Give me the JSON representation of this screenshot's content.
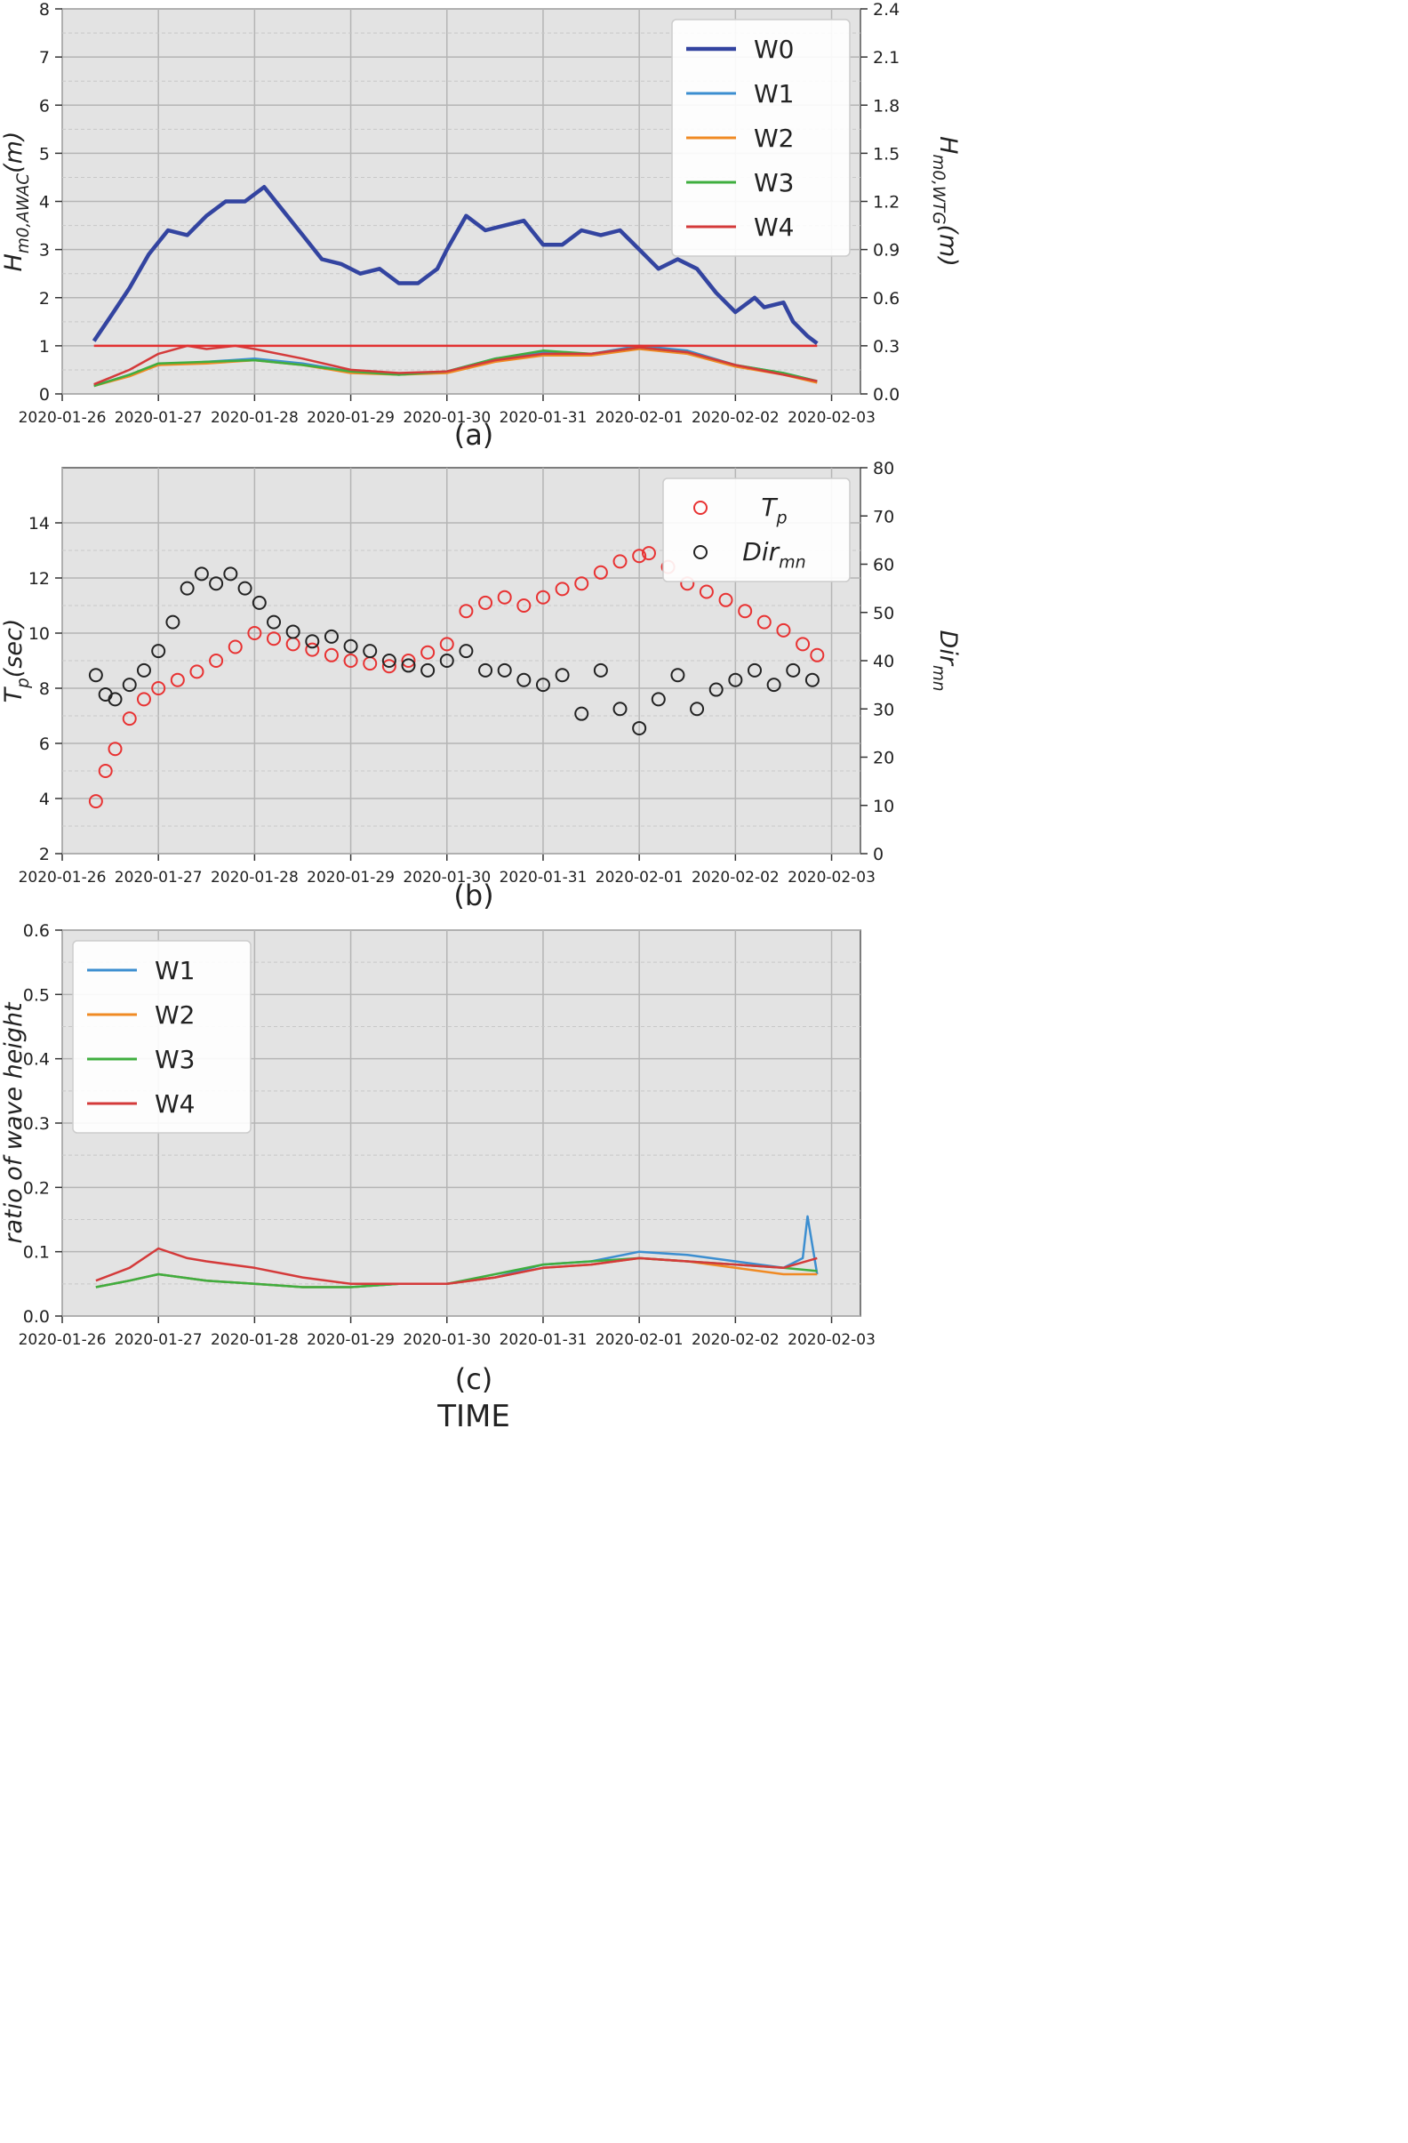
{
  "chart_data": [
    {
      "type": "line",
      "panel_label": "(a)",
      "ylabel": "H_{m0,AWAC}(m)",
      "ylabel_right": "H_{m0,WTG}(m)",
      "ylim": [
        0,
        8
      ],
      "ylim_right": [
        0,
        2.4
      ],
      "yticks": [
        "0",
        "1",
        "2",
        "3",
        "4",
        "5",
        "6",
        "7",
        "8"
      ],
      "yticks_right": [
        "0.0",
        "0.3",
        "0.6",
        "0.9",
        "1.2",
        "1.5",
        "1.8",
        "2.1",
        "2.4"
      ],
      "xticks": [
        "2020-01-26",
        "2020-01-27",
        "2020-01-28",
        "2020-01-29",
        "2020-01-30",
        "2020-01-31",
        "2020-02-01",
        "2020-02-02",
        "2020-02-03"
      ],
      "grid": true,
      "legend_position": "top-right",
      "series": [
        {
          "name": "W0",
          "axis": "left",
          "color": "#3344a0",
          "x": [
            0.33,
            0.5,
            0.7,
            0.9,
            1.1,
            1.3,
            1.5,
            1.7,
            1.9,
            2.1,
            2.3,
            2.5,
            2.7,
            2.9,
            3.1,
            3.3,
            3.5,
            3.7,
            3.9,
            4.0,
            4.2,
            4.4,
            4.6,
            4.8,
            5.0,
            5.2,
            5.4,
            5.6,
            5.8,
            6.0,
            6.2,
            6.4,
            6.6,
            6.8,
            7.0,
            7.2,
            7.3,
            7.5,
            7.6,
            7.75,
            7.85
          ],
          "y": [
            1.1,
            1.6,
            2.2,
            2.9,
            3.4,
            3.3,
            3.7,
            4.0,
            4.0,
            4.3,
            3.8,
            3.3,
            2.8,
            2.7,
            2.5,
            2.6,
            2.3,
            2.3,
            2.6,
            3.0,
            3.7,
            3.4,
            3.5,
            3.6,
            3.1,
            3.1,
            3.4,
            3.3,
            3.4,
            3.0,
            2.6,
            2.8,
            2.6,
            2.1,
            1.7,
            2.0,
            1.8,
            1.9,
            1.5,
            1.2,
            1.05
          ]
        },
        {
          "name": "W1",
          "axis": "right",
          "color": "#3c8ed0",
          "x": [
            0.33,
            0.7,
            1.0,
            1.5,
            2.0,
            2.5,
            3.0,
            3.5,
            4.0,
            4.5,
            5.0,
            5.5,
            6.0,
            6.5,
            7.0,
            7.5,
            7.85
          ],
          "y": [
            0.05,
            0.12,
            0.18,
            0.2,
            0.22,
            0.19,
            0.14,
            0.12,
            0.14,
            0.22,
            0.26,
            0.25,
            0.3,
            0.27,
            0.18,
            0.13,
            0.08
          ]
        },
        {
          "name": "W2",
          "axis": "right",
          "color": "#f08a24",
          "x": [
            0.33,
            0.7,
            1.0,
            1.5,
            2.0,
            2.5,
            3.0,
            3.5,
            4.0,
            4.5,
            5.0,
            5.5,
            6.0,
            6.5,
            7.0,
            7.5,
            7.85
          ],
          "y": [
            0.05,
            0.11,
            0.18,
            0.19,
            0.21,
            0.18,
            0.13,
            0.12,
            0.13,
            0.2,
            0.24,
            0.24,
            0.28,
            0.25,
            0.17,
            0.12,
            0.07
          ]
        },
        {
          "name": "W3",
          "axis": "right",
          "color": "#3fae3f",
          "x": [
            0.33,
            0.7,
            1.0,
            1.5,
            2.0,
            2.5,
            3.0,
            3.5,
            4.0,
            4.5,
            5.0,
            5.5,
            6.0,
            6.5,
            7.0,
            7.5,
            7.85
          ],
          "y": [
            0.05,
            0.12,
            0.19,
            0.2,
            0.21,
            0.18,
            0.14,
            0.12,
            0.14,
            0.22,
            0.27,
            0.25,
            0.29,
            0.26,
            0.18,
            0.13,
            0.08
          ]
        },
        {
          "name": "W4",
          "axis": "right",
          "color": "#d43a3a",
          "x": [
            0.33,
            0.7,
            1.0,
            1.3,
            1.5,
            1.8,
            2.0,
            2.5,
            3.0,
            3.5,
            4.0,
            4.5,
            5.0,
            5.5,
            6.0,
            6.5,
            7.0,
            7.5,
            7.85
          ],
          "y": [
            0.06,
            0.15,
            0.25,
            0.3,
            0.28,
            0.3,
            0.28,
            0.22,
            0.15,
            0.13,
            0.14,
            0.21,
            0.25,
            0.25,
            0.29,
            0.26,
            0.18,
            0.12,
            0.08
          ]
        },
        {
          "name": "",
          "axis": "left",
          "color": "#e23030",
          "x": [
            0.33,
            7.85
          ],
          "y": [
            1.0,
            1.0
          ]
        }
      ]
    },
    {
      "type": "scatter",
      "panel_label": "(b)",
      "ylabel": "T_p(sec)",
      "ylabel_right": "Dir_mn",
      "ylim": [
        2,
        16
      ],
      "ylim_right": [
        0,
        80
      ],
      "yticks": [
        "2",
        "4",
        "6",
        "8",
        "10",
        "12",
        "14"
      ],
      "yticks_right": [
        "0",
        "10",
        "20",
        "30",
        "40",
        "50",
        "60",
        "70",
        "80"
      ],
      "xticks": [
        "2020-01-26",
        "2020-01-27",
        "2020-01-28",
        "2020-01-29",
        "2020-01-30",
        "2020-01-31",
        "2020-02-01",
        "2020-02-02",
        "2020-02-03"
      ],
      "grid": true,
      "legend_position": "top-right",
      "series": [
        {
          "name": "T_p",
          "axis": "left",
          "color": "#e83232",
          "x": [
            0.35,
            0.45,
            0.55,
            0.7,
            0.85,
            1.0,
            1.2,
            1.4,
            1.6,
            1.8,
            2.0,
            2.2,
            2.4,
            2.6,
            2.8,
            3.0,
            3.2,
            3.4,
            3.6,
            3.8,
            4.0,
            4.2,
            4.4,
            4.6,
            4.8,
            5.0,
            5.2,
            5.4,
            5.6,
            5.8,
            6.0,
            6.1,
            6.3,
            6.5,
            6.7,
            6.9,
            7.1,
            7.3,
            7.5,
            7.7,
            7.85
          ],
          "y": [
            3.9,
            5.0,
            5.8,
            6.9,
            7.6,
            8.0,
            8.3,
            8.6,
            9.0,
            9.5,
            10.0,
            9.8,
            9.6,
            9.4,
            9.2,
            9.0,
            8.9,
            8.8,
            9.0,
            9.3,
            9.6,
            10.8,
            11.1,
            11.3,
            11.0,
            11.3,
            11.6,
            11.8,
            12.2,
            12.6,
            12.8,
            12.9,
            12.4,
            11.8,
            11.5,
            11.2,
            10.8,
            10.4,
            10.1,
            9.6,
            9.2
          ]
        },
        {
          "name": "Dir_mn",
          "axis": "right",
          "color": "#222222",
          "x": [
            0.35,
            0.45,
            0.55,
            0.7,
            0.85,
            1.0,
            1.15,
            1.3,
            1.45,
            1.6,
            1.75,
            1.9,
            2.05,
            2.2,
            2.4,
            2.6,
            2.8,
            3.0,
            3.2,
            3.4,
            3.6,
            3.8,
            4.0,
            4.2,
            4.4,
            4.6,
            4.8,
            5.0,
            5.2,
            5.4,
            5.6,
            5.8,
            6.0,
            6.2,
            6.4,
            6.6,
            6.8,
            7.0,
            7.2,
            7.4,
            7.6,
            7.8
          ],
          "y": [
            37,
            33,
            32,
            35,
            38,
            42,
            48,
            55,
            58,
            56,
            58,
            55,
            52,
            48,
            46,
            44,
            45,
            43,
            42,
            40,
            39,
            38,
            40,
            42,
            38,
            38,
            36,
            35,
            37,
            29,
            38,
            30,
            26,
            32,
            37,
            30,
            34,
            36,
            38,
            35,
            38,
            36
          ]
        }
      ]
    },
    {
      "type": "line",
      "panel_label": "(c)",
      "xlabel": "TIME",
      "ylabel": "ratio of wave height",
      "ylim": [
        0,
        0.6
      ],
      "yticks": [
        "0.0",
        "0.1",
        "0.2",
        "0.3",
        "0.4",
        "0.5",
        "0.6"
      ],
      "xticks": [
        "2020-01-26",
        "2020-01-27",
        "2020-01-28",
        "2020-01-29",
        "2020-01-30",
        "2020-01-31",
        "2020-02-01",
        "2020-02-02",
        "2020-02-03"
      ],
      "grid": true,
      "legend_position": "top-left",
      "series": [
        {
          "name": "W1",
          "color": "#3c8ed0",
          "x": [
            0.35,
            0.7,
            1.0,
            1.5,
            2.0,
            2.5,
            3.0,
            3.5,
            4.0,
            4.5,
            5.0,
            5.5,
            6.0,
            6.5,
            7.0,
            7.5,
            7.7,
            7.75,
            7.85
          ],
          "y": [
            0.045,
            0.055,
            0.065,
            0.055,
            0.05,
            0.045,
            0.045,
            0.05,
            0.05,
            0.06,
            0.08,
            0.085,
            0.1,
            0.095,
            0.085,
            0.075,
            0.09,
            0.155,
            0.065
          ]
        },
        {
          "name": "W2",
          "color": "#f08a24",
          "x": [
            0.35,
            0.7,
            1.0,
            1.5,
            2.0,
            2.5,
            3.0,
            3.5,
            4.0,
            4.5,
            5.0,
            5.5,
            6.0,
            6.5,
            7.0,
            7.5,
            7.85
          ],
          "y": [
            0.045,
            0.055,
            0.065,
            0.055,
            0.05,
            0.045,
            0.045,
            0.05,
            0.05,
            0.06,
            0.075,
            0.08,
            0.09,
            0.085,
            0.075,
            0.065,
            0.065
          ]
        },
        {
          "name": "W3",
          "color": "#3fae3f",
          "x": [
            0.35,
            0.7,
            1.0,
            1.5,
            2.0,
            2.5,
            3.0,
            3.5,
            4.0,
            4.5,
            5.0,
            5.5,
            6.0,
            6.5,
            7.0,
            7.5,
            7.85
          ],
          "y": [
            0.045,
            0.055,
            0.065,
            0.055,
            0.05,
            0.045,
            0.045,
            0.05,
            0.05,
            0.065,
            0.08,
            0.085,
            0.09,
            0.085,
            0.08,
            0.075,
            0.07
          ]
        },
        {
          "name": "W4",
          "color": "#d43a3a",
          "x": [
            0.35,
            0.7,
            1.0,
            1.3,
            1.5,
            2.0,
            2.5,
            3.0,
            3.5,
            4.0,
            4.5,
            5.0,
            5.5,
            6.0,
            6.5,
            7.0,
            7.5,
            7.85
          ],
          "y": [
            0.055,
            0.075,
            0.105,
            0.09,
            0.085,
            0.075,
            0.06,
            0.05,
            0.05,
            0.05,
            0.06,
            0.075,
            0.08,
            0.09,
            0.085,
            0.08,
            0.075,
            0.09
          ]
        }
      ]
    }
  ]
}
